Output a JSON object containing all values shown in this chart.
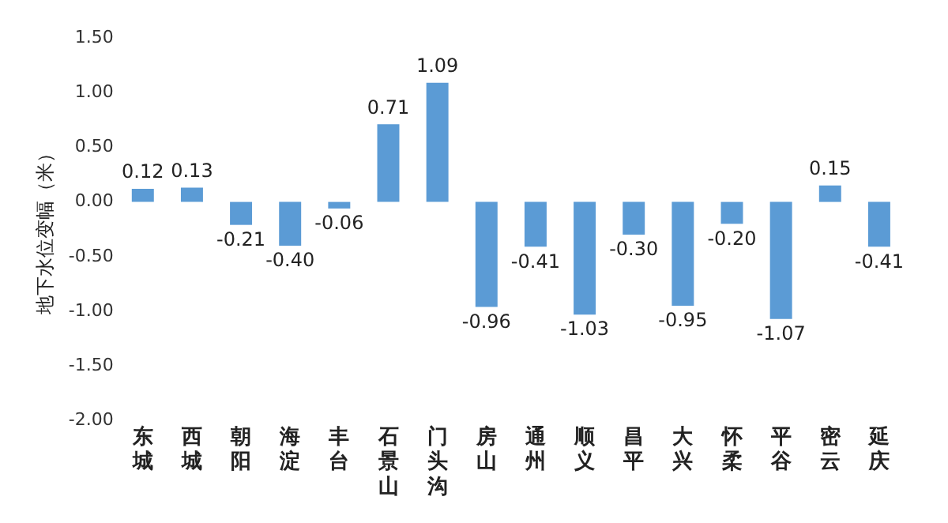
{
  "chart_data": {
    "type": "bar",
    "ylabel": "地下水位变幅（米）",
    "categories": [
      "东城",
      "西城",
      "朝阳",
      "海淀",
      "丰台",
      "石景山",
      "门头沟",
      "房山",
      "通州",
      "顺义",
      "昌平",
      "大兴",
      "怀柔",
      "平谷",
      "密云",
      "延庆"
    ],
    "values": [
      0.12,
      0.13,
      -0.21,
      -0.4,
      -0.06,
      0.71,
      1.09,
      -0.96,
      -0.41,
      -1.03,
      -0.3,
      -0.95,
      -0.2,
      -1.07,
      0.15,
      -0.41
    ],
    "color": "#5b9bd5",
    "value_labels": [
      "0.12",
      "0.13",
      "-0.21",
      "-0.40",
      "-0.06",
      "0.71",
      "1.09",
      "-0.96",
      "-0.41",
      "-1.03",
      "-0.30",
      "-0.95",
      "-0.20",
      "-1.07",
      "0.15",
      "-0.41"
    ],
    "ylim": [
      -2,
      1.5
    ],
    "yticks": [
      {
        "value": -2,
        "label": "-2.00"
      },
      {
        "value": -1.5,
        "label": "-1.50"
      },
      {
        "value": -1,
        "label": "-1.00"
      },
      {
        "value": -0.5,
        "label": "-0.50"
      },
      {
        "value": 0,
        "label": "0.00"
      },
      {
        "value": 0.5,
        "label": "0.50"
      },
      {
        "value": 1,
        "label": "1.00"
      },
      {
        "value": 1.5,
        "label": "1.50"
      }
    ],
    "grid": false,
    "legend": false
  }
}
